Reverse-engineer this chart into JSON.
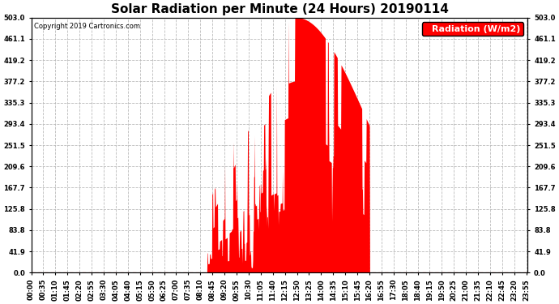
{
  "title": "Solar Radiation per Minute (24 Hours) 20190114",
  "copyright_text": "Copyright 2019 Cartronics.com",
  "legend_label": "Radiation (W/m2)",
  "background_color": "#ffffff",
  "plot_bg_color": "#ffffff",
  "fill_color": "#ff0000",
  "line_color": "#ff0000",
  "grid_color": "#bbbbbb",
  "dashed_line_color": "#ff0000",
  "ytick_labels": [
    "0.0",
    "41.9",
    "83.8",
    "125.8",
    "167.7",
    "209.6",
    "251.5",
    "293.4",
    "335.3",
    "377.2",
    "419.2",
    "461.1",
    "503.0"
  ],
  "ytick_values": [
    0.0,
    41.9,
    83.8,
    125.8,
    167.7,
    209.6,
    251.5,
    293.4,
    335.3,
    377.2,
    419.2,
    461.1,
    503.0
  ],
  "ymax": 503.0,
  "ymin": 0.0,
  "xtick_labels": [
    "00:00",
    "00:35",
    "01:10",
    "01:45",
    "02:20",
    "02:55",
    "03:30",
    "04:05",
    "04:40",
    "05:15",
    "05:50",
    "06:25",
    "07:00",
    "07:35",
    "08:10",
    "08:45",
    "09:20",
    "09:55",
    "10:30",
    "11:05",
    "11:40",
    "12:15",
    "12:50",
    "13:25",
    "14:00",
    "14:35",
    "15:10",
    "15:45",
    "16:20",
    "16:55",
    "17:30",
    "18:05",
    "18:40",
    "19:15",
    "19:50",
    "20:25",
    "21:00",
    "21:35",
    "22:10",
    "22:45",
    "23:20",
    "23:55"
  ],
  "title_fontsize": 11,
  "axis_fontsize": 6,
  "legend_fontsize": 8,
  "sunrise_min": 510,
  "sunset_min": 980,
  "peak_min": 770,
  "peak_val": 503.0
}
